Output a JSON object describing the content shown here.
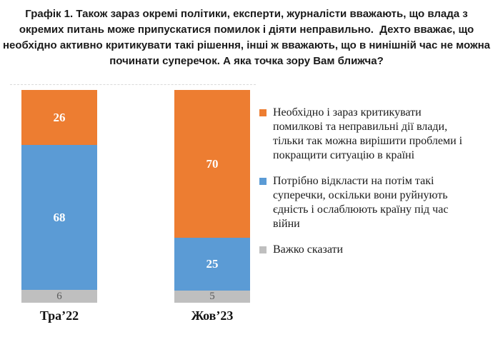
{
  "chart_data": {
    "type": "bar",
    "subtype": "stacked-100-percent",
    "title": "Графік 1. Також зараз окремі політики, експерти, журналісти вважають, що влада з окремих питань може припускатися помилок і діяти неправильно.  Дехто вважає, що необхідно активно критикувати такі рішення, інші ж вважають, що в нинішній час не можна починати суперечок. А яка точка зору Вам ближча?",
    "title_lines": [
      "Графік 1. Також зараз окремі політики, експерти, журналісти вважають, що влада з",
      "окремих питань може припускатися помилок і діяти неправильно.  Дехто вважає, що",
      "необхідно активно критикувати такі рішення, інші ж вважають, що в нинішній час не можна",
      "починати суперечок. А яка точка зору Вам ближча?"
    ],
    "categories": [
      "Тра’22",
      "Жов’23"
    ],
    "series": [
      {
        "name": "Необхідно і зараз критикувати помилкові та неправильні дії влади, тільки так можна вирішити проблеми і покращити ситуацію в країні",
        "color": "#ED7D31",
        "label_color": "#FFFFFF",
        "values": [
          26,
          70
        ]
      },
      {
        "name": "Потрібно відкласти на потім такі суперечки, оскільки вони руйнують єдність і ослаблюють країну під час війни",
        "color": "#5B9BD5",
        "label_color": "#FFFFFF",
        "values": [
          68,
          25
        ]
      },
      {
        "name": "Важко сказати",
        "color": "#BFBFBF",
        "label_color": "#595959",
        "values": [
          6,
          5
        ]
      }
    ],
    "stacking": "series listed top-to-bottom within each bar",
    "ylim": [
      0,
      100
    ],
    "grid": "single dashed line at top of plot area",
    "legend_position": "right",
    "xlabel": "",
    "ylabel": ""
  }
}
